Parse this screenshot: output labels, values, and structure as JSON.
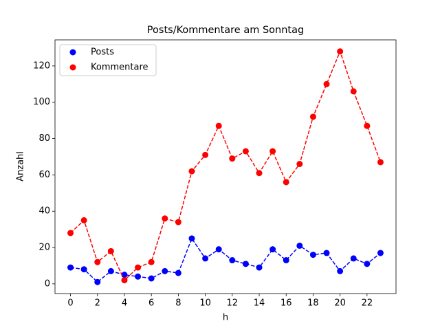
{
  "chart_data": {
    "type": "line",
    "title": "Posts/Kommentare am Sonntag",
    "xlabel": "h",
    "ylabel": "Anzahl",
    "x": [
      0,
      1,
      2,
      3,
      4,
      5,
      6,
      7,
      8,
      9,
      10,
      11,
      12,
      13,
      14,
      15,
      16,
      17,
      18,
      19,
      20,
      21,
      22,
      23
    ],
    "series": [
      {
        "name": "Posts",
        "color": "#0000ff",
        "values": [
          9,
          8,
          1,
          7,
          5,
          4,
          3,
          7,
          6,
          25,
          14,
          19,
          13,
          11,
          9,
          19,
          13,
          21,
          16,
          17,
          7,
          14,
          11,
          17
        ]
      },
      {
        "name": "Kommentare",
        "color": "#ff0000",
        "values": [
          28,
          35,
          12,
          18,
          2,
          9,
          12,
          36,
          34,
          62,
          71,
          87,
          69,
          73,
          61,
          73,
          56,
          66,
          92,
          110,
          128,
          106,
          87,
          67
        ]
      }
    ],
    "xlim": [
      -1.15,
      24.15
    ],
    "ylim": [
      -5.35,
      134.35
    ],
    "xticks": [
      0,
      2,
      4,
      6,
      8,
      10,
      12,
      14,
      16,
      18,
      20,
      22
    ],
    "yticks": [
      0,
      20,
      40,
      60,
      80,
      100,
      120
    ],
    "legend": "upper left"
  }
}
